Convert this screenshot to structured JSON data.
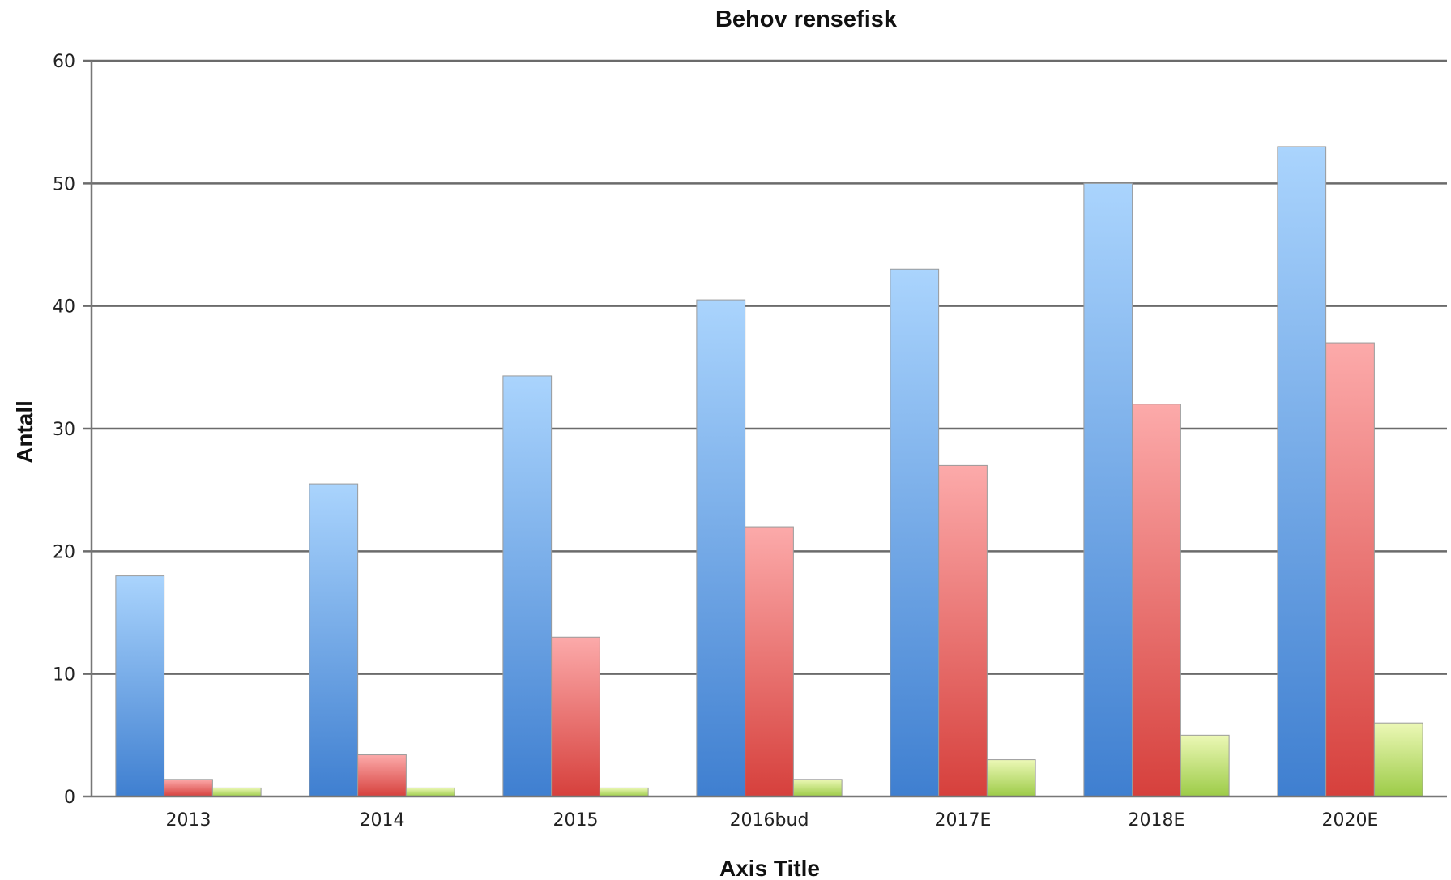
{
  "chart_data": {
    "type": "bar",
    "title": "Behov rensefisk",
    "xlabel": "Axis Title",
    "ylabel": "Antall",
    "categories": [
      "2013",
      "2014",
      "2015",
      "2016bud",
      "2017E",
      "2018E",
      "2020E"
    ],
    "series": [
      {
        "values": [
          18,
          25.5,
          34.3,
          40.5,
          43,
          50,
          53
        ],
        "color": "#4a86d6"
      },
      {
        "values": [
          1.4,
          3.4,
          13,
          22,
          27,
          32,
          37
        ],
        "color": "#e0504d"
      },
      {
        "values": [
          0.7,
          0.7,
          0.7,
          1.4,
          3,
          5,
          6
        ],
        "color": "#a5d15a"
      }
    ],
    "ylim": [
      0,
      60
    ],
    "yticks": [
      0,
      10,
      20,
      30,
      40,
      50,
      60
    ],
    "grid": true,
    "legend": "none"
  }
}
